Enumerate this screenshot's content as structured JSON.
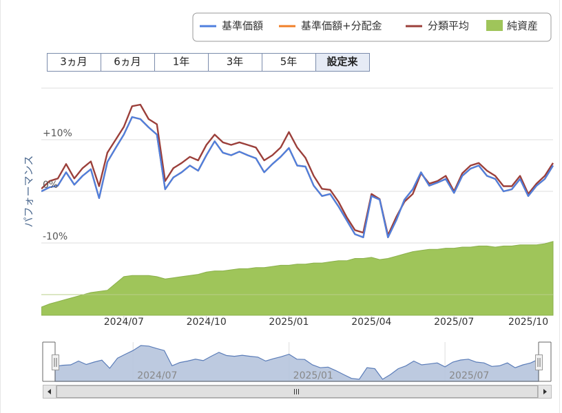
{
  "chart_data": {
    "type": "line",
    "y_axis_title": "パフォーマンス",
    "range_buttons": [
      "3ヵ月",
      "6ヵ月",
      "1年",
      "3年",
      "5年",
      "設定来"
    ],
    "selected_range": 5,
    "legend": "top-right",
    "grid": true,
    "categories": [
      null,
      null,
      null,
      null,
      null,
      null,
      null,
      null,
      null,
      null,
      "2024/07",
      null,
      null,
      null,
      null,
      null,
      null,
      null,
      null,
      null,
      "2024/10",
      null,
      null,
      null,
      null,
      null,
      null,
      null,
      null,
      null,
      "2025/01",
      null,
      null,
      null,
      null,
      null,
      null,
      null,
      null,
      null,
      "2025/04",
      null,
      null,
      null,
      null,
      null,
      null,
      null,
      null,
      null,
      "2025/07",
      null,
      null,
      null,
      null,
      null,
      null,
      null,
      null,
      "2025/10",
      null,
      null,
      null
    ],
    "ylim": [
      -24,
      20
    ],
    "yticks": [
      {
        "value": 20,
        "label": null
      },
      {
        "value": 10,
        "label": "+10%"
      },
      {
        "value": 0,
        "label": "0%"
      },
      {
        "value": -10,
        "label": "-10%"
      },
      {
        "value": -20,
        "label": null
      }
    ],
    "y2lim": [
      0,
      100
    ],
    "series": [
      {
        "name": "基準価額",
        "color": "#4f7fde",
        "values": [
          0,
          0.8,
          1.1,
          3.7,
          1.3,
          3,
          4.3,
          -1.3,
          5.7,
          8.4,
          11,
          14.4,
          14,
          12.4,
          11,
          0.4,
          2.7,
          3.7,
          5,
          4,
          7,
          9.7,
          7.5,
          7,
          7.7,
          7,
          6.4,
          3.7,
          5.3,
          6.7,
          8.4,
          5,
          4.8,
          1.1,
          -0.9,
          -0.5,
          -2.9,
          -5.6,
          -8.3,
          -8.9,
          -0.9,
          -1.6,
          -8.9,
          -5.6,
          -1.6,
          0.4,
          3.7,
          1.1,
          1.7,
          2.4,
          -0.3,
          3,
          4.4,
          5,
          3,
          2.4,
          0,
          0.4,
          2.4,
          -0.9,
          1.1,
          2.4,
          5
        ]
      },
      {
        "name": "基準価額+分配金",
        "color": "#f07f28",
        "values": [
          0,
          0.8,
          1.1,
          3.7,
          1.3,
          3,
          4.3,
          -1.3,
          5.7,
          8.4,
          11,
          14.4,
          14,
          12.4,
          11,
          0.4,
          2.7,
          3.7,
          5,
          4,
          7,
          9.7,
          7.5,
          7,
          7.7,
          7,
          6.4,
          3.7,
          5.3,
          6.7,
          8.4,
          5,
          4.8,
          1.1,
          -0.9,
          -0.5,
          -2.9,
          -5.6,
          -8.3,
          -8.9,
          -0.9,
          -1.6,
          -8.9,
          -5.6,
          -1.6,
          0.4,
          3.7,
          1.1,
          1.7,
          2.4,
          -0.3,
          3,
          4.4,
          5,
          3,
          2.4,
          0,
          0.4,
          2.4,
          -0.9,
          1.1,
          2.4,
          5
        ]
      },
      {
        "name": "分類平均",
        "color": "#9b3f3a",
        "values": [
          0.5,
          2,
          2.5,
          5.3,
          2.5,
          4.5,
          5.8,
          1,
          7.5,
          10,
          12.5,
          16.5,
          16.8,
          14,
          13,
          2,
          4.5,
          5.5,
          6.7,
          6,
          9,
          11,
          9.5,
          9,
          9.5,
          9,
          8.5,
          6,
          7,
          8.5,
          11.5,
          8.5,
          6.5,
          3,
          0.5,
          0.3,
          -2,
          -5,
          -7.5,
          -8,
          -0.5,
          -1.5,
          -8.5,
          -5,
          -2,
          -0.5,
          3.5,
          1.5,
          2,
          3,
          0,
          3.5,
          5,
          5.5,
          4,
          3,
          1,
          1,
          3,
          -0.5,
          1.5,
          3,
          5.5
        ]
      },
      {
        "name": "純資産",
        "type": "area",
        "axis": "y2",
        "color": "#9fc55a",
        "values": [
          3.6,
          5,
          6,
          7,
          8,
          9,
          10,
          10.5,
          11,
          14,
          17,
          17.5,
          17.5,
          17.5,
          17,
          16,
          16.5,
          17,
          17.5,
          18,
          19,
          19.5,
          19.5,
          20,
          20.5,
          20.5,
          21,
          21,
          21.5,
          22,
          22,
          22.5,
          22.5,
          23,
          23,
          23.5,
          24,
          24,
          25,
          25,
          25.5,
          24.5,
          25,
          26,
          27,
          28,
          28.5,
          29,
          29,
          29.5,
          29.5,
          30,
          30,
          30.5,
          30.5,
          30,
          30.5,
          30.5,
          31,
          31,
          31,
          31.5,
          32.5
        ]
      }
    ]
  }
}
